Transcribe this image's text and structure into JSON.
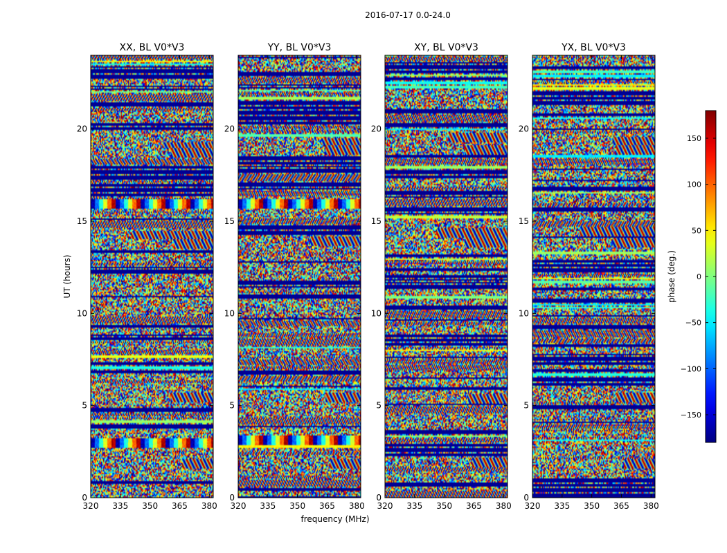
{
  "chart_data": {
    "type": "heatmap",
    "title": "2016-07-17 0.0-24.0",
    "xlabel": "frequency (MHz)",
    "ylabel": "UT (hours)",
    "xlim": [
      320,
      382
    ],
    "ylim": [
      0,
      24
    ],
    "xticks": [
      320,
      335,
      350,
      365,
      380
    ],
    "yticks": [
      0,
      5,
      10,
      15,
      20
    ],
    "panels": [
      {
        "id": "XX",
        "title": "XX, BL V0*V3",
        "seed": 11,
        "bursts": [
          {
            "t": 15.9,
            "period": 4
          },
          {
            "t": 2.9,
            "period": 4
          }
        ],
        "fringes": [
          {
            "t": 19.0,
            "fstart": 356
          },
          {
            "t": 18.7,
            "fstart": 360
          },
          {
            "t": 14.2,
            "fstart": 340
          },
          {
            "t": 13.7,
            "fstart": 362
          },
          {
            "t": 5.4,
            "fstart": 360
          },
          {
            "t": 1.8,
            "fstart": 366
          }
        ]
      },
      {
        "id": "YY",
        "title": "YY, BL V0*V3",
        "seed": 23,
        "bursts": [
          {
            "t": 15.9,
            "period": 4
          },
          {
            "t": 3.1,
            "period": 4
          }
        ],
        "fringes": [
          {
            "t": 19.2,
            "fstart": 362
          },
          {
            "t": 18.8,
            "fstart": 364
          },
          {
            "t": 13.9,
            "fstart": 356
          },
          {
            "t": 5.4,
            "fstart": 364
          },
          {
            "t": 1.8,
            "fstart": 366
          }
        ]
      },
      {
        "id": "XY",
        "title": "XY, BL V0*V3",
        "seed": 37,
        "bursts": [],
        "fringes": [
          {
            "t": 19.5,
            "fstart": 352
          },
          {
            "t": 18.8,
            "fstart": 360
          },
          {
            "t": 14.3,
            "fstart": 346
          },
          {
            "t": 13.8,
            "fstart": 360
          },
          {
            "t": 5.3,
            "fstart": 362
          },
          {
            "t": 1.9,
            "fstart": 364
          }
        ]
      },
      {
        "id": "YX",
        "title": "YX, BL V0*V3",
        "seed": 53,
        "bursts": [],
        "fringes": [
          {
            "t": 19.3,
            "fstart": 360
          },
          {
            "t": 18.8,
            "fstart": 362
          },
          {
            "t": 14.4,
            "fstart": 344
          },
          {
            "t": 13.8,
            "fstart": 360
          },
          {
            "t": 5.4,
            "fstart": 362
          },
          {
            "t": 1.8,
            "fstart": 366
          }
        ]
      }
    ],
    "colorbar": {
      "label": "phase (deg.)",
      "vmin": -180,
      "vmax": 180,
      "colormap": "jet",
      "ticks": [
        -150,
        -100,
        -50,
        0,
        50,
        100,
        150
      ],
      "tick_labels": [
        "−150",
        "−100",
        "−50",
        "0",
        "50",
        "100",
        "150"
      ]
    }
  }
}
